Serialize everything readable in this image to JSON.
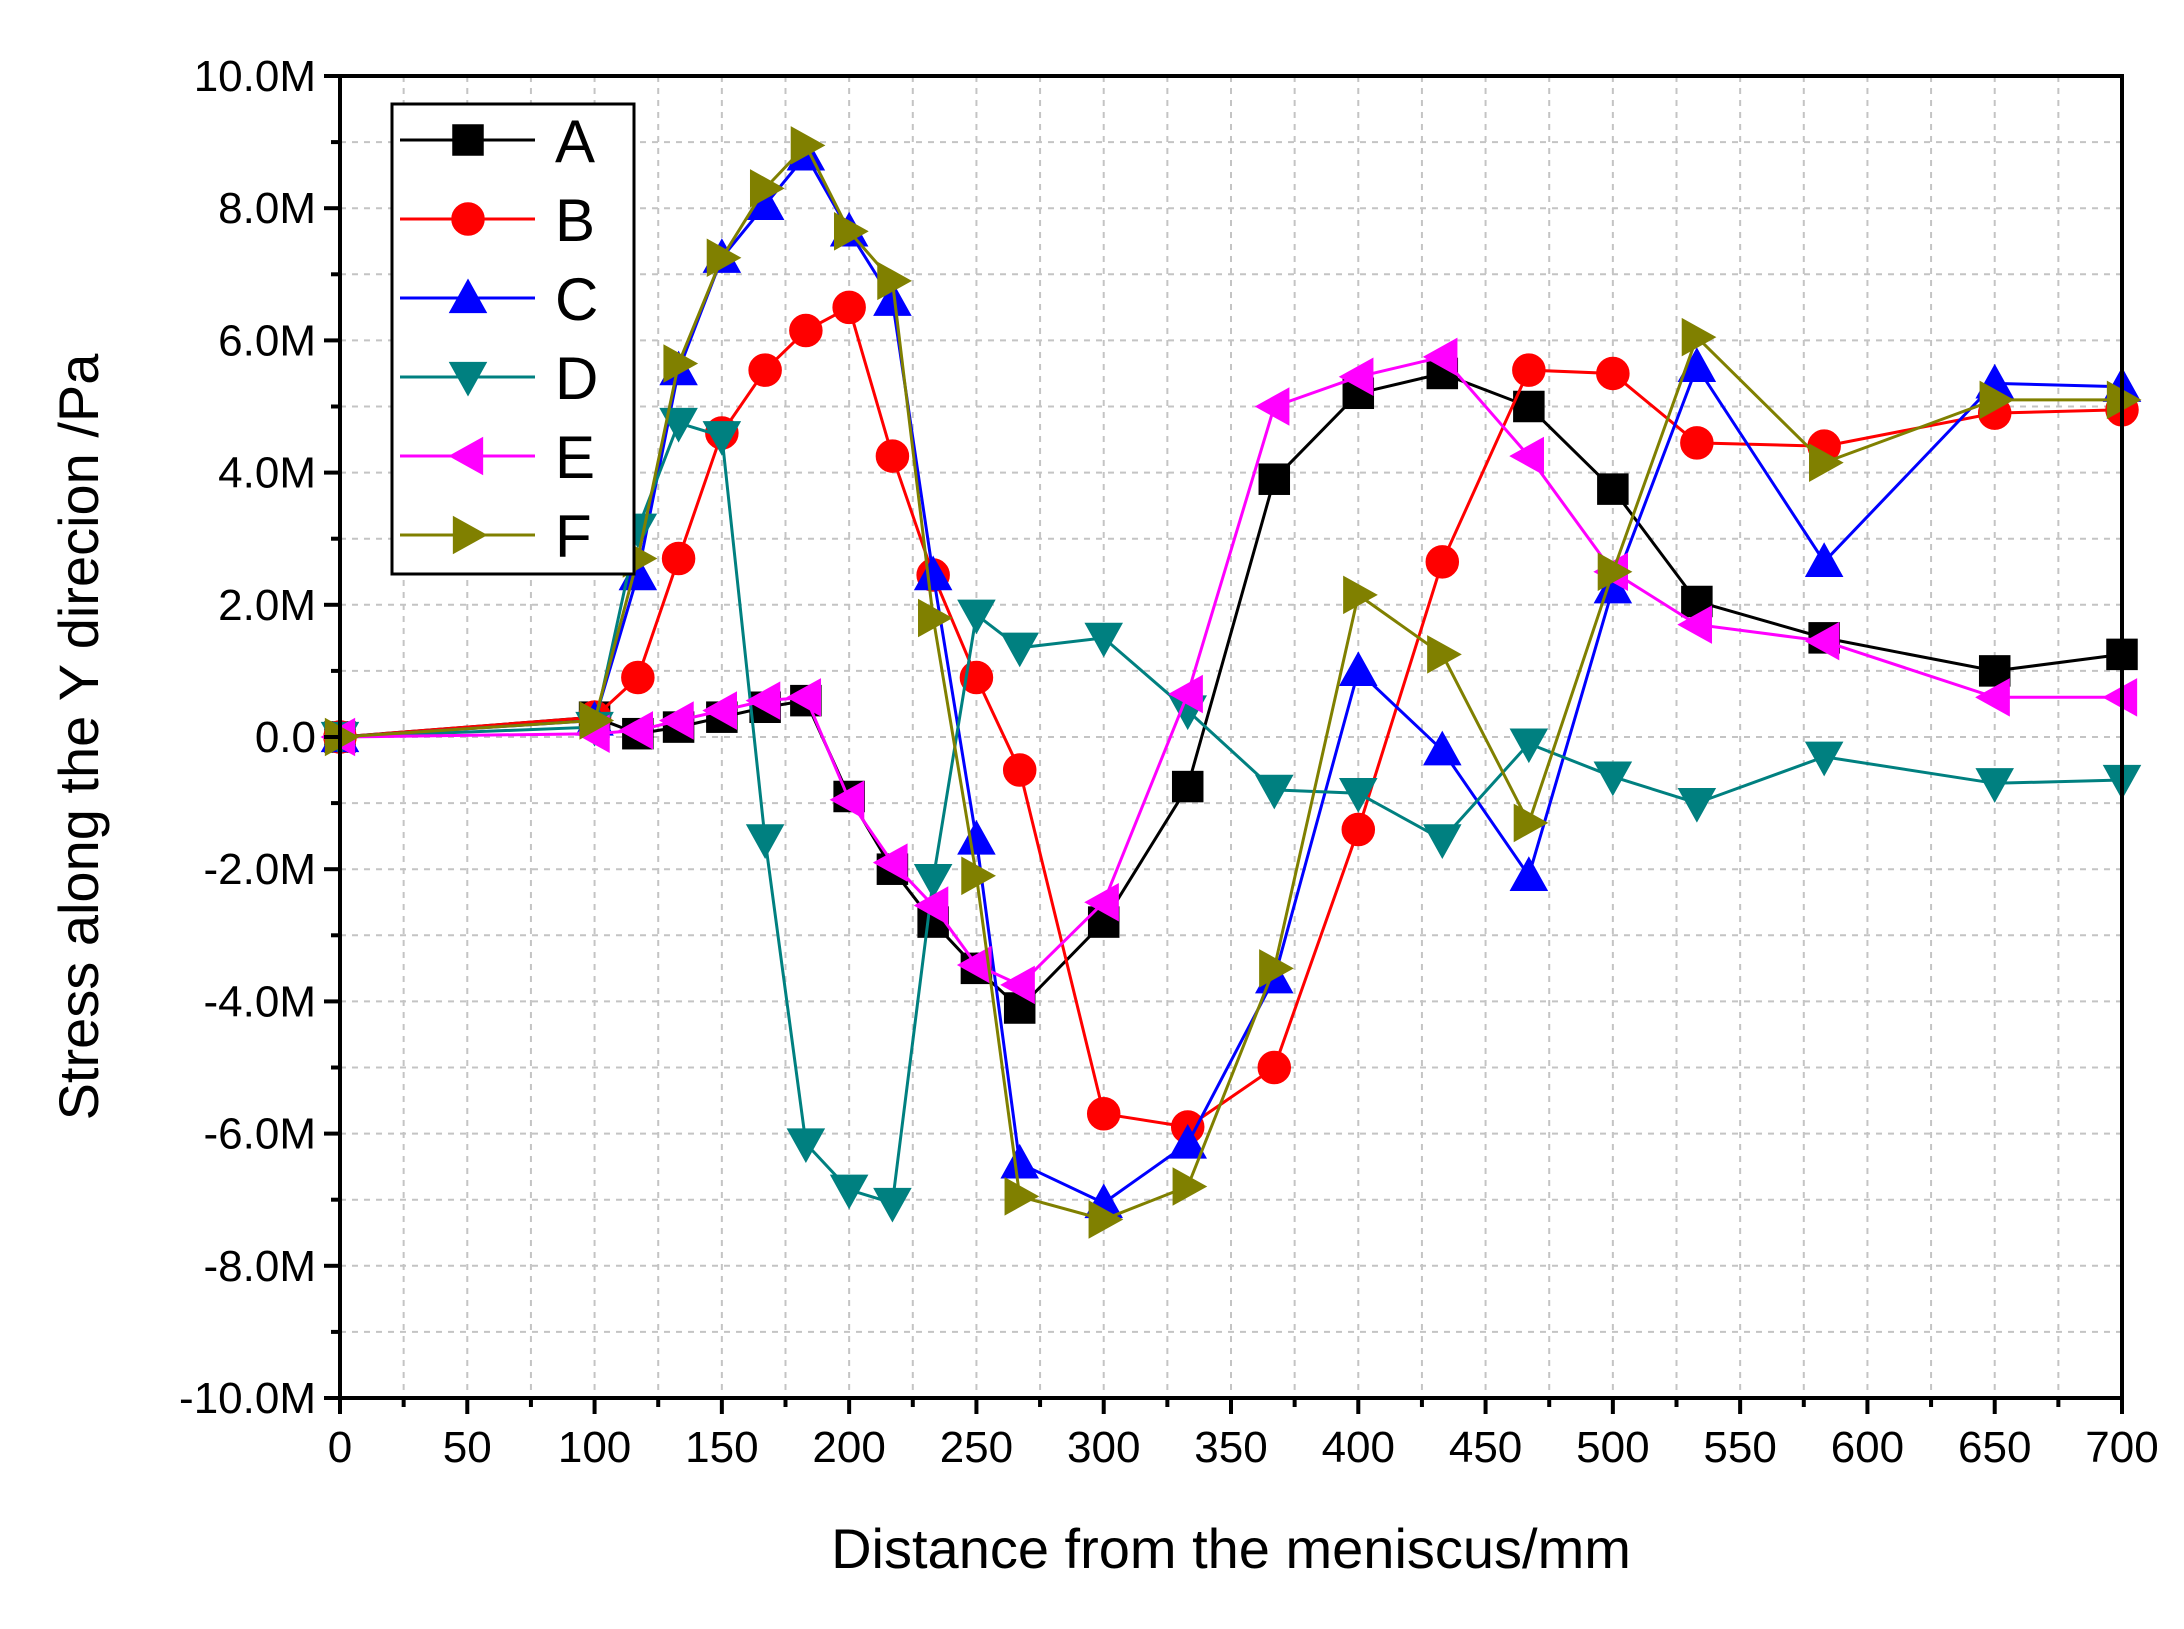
{
  "chart_data": {
    "type": "line",
    "title": "",
    "xlabel": "Distance from the meniscus/mm",
    "ylabel": "Stress along the Y direcion /Pa",
    "xlim": [
      0,
      700
    ],
    "ylim": [
      -10000000,
      10000000
    ],
    "x_ticks": [
      0,
      50,
      100,
      150,
      200,
      250,
      300,
      350,
      400,
      450,
      500,
      550,
      600,
      650,
      700
    ],
    "x_tick_labels": [
      "0",
      "50",
      "100",
      "150",
      "200",
      "250",
      "300",
      "350",
      "400",
      "450",
      "500",
      "550",
      "600",
      "650",
      "700"
    ],
    "y_ticks": [
      -10000000,
      -8000000,
      -6000000,
      -4000000,
      -2000000,
      0,
      2000000,
      4000000,
      6000000,
      8000000,
      10000000
    ],
    "y_tick_labels": [
      "-10.0M",
      "-8.0M",
      "-6.0M",
      "-4.0M",
      "-2.0M",
      "0.0",
      "2.0M",
      "4.0M",
      "6.0M",
      "8.0M",
      "10.0M"
    ],
    "grid": true,
    "legend_position": "top-left",
    "series": [
      {
        "name": "A",
        "color": "#000000",
        "marker": "square",
        "x": [
          0,
          100,
          117,
          133,
          150,
          167,
          183,
          200,
          217,
          233,
          250,
          267,
          300,
          333,
          367,
          400,
          433,
          467,
          500,
          533,
          583,
          650,
          700
        ],
        "y": [
          0,
          300000,
          50000,
          150000,
          300000,
          450000,
          550000,
          -900000,
          -2000000,
          -2800000,
          -3500000,
          -4100000,
          -2800000,
          -750000,
          3900000,
          5200000,
          5500000,
          5000000,
          3750000,
          2050000,
          1500000,
          1000000,
          1250000
        ]
      },
      {
        "name": "B",
        "color": "#ff0000",
        "marker": "circle",
        "x": [
          0,
          100,
          117,
          133,
          150,
          167,
          183,
          200,
          217,
          233,
          250,
          267,
          300,
          333,
          367,
          400,
          433,
          467,
          500,
          533,
          583,
          650,
          700
        ],
        "y": [
          0,
          300000,
          900000,
          2700000,
          4600000,
          5550000,
          6150000,
          6500000,
          4250000,
          2450000,
          900000,
          -500000,
          -5700000,
          -5900000,
          -5000000,
          -1400000,
          2650000,
          5550000,
          5500000,
          4450000,
          4400000,
          4900000,
          4950000
        ]
      },
      {
        "name": "C",
        "color": "#0000ff",
        "marker": "triangle-up",
        "x": [
          0,
          100,
          117,
          133,
          150,
          167,
          183,
          200,
          217,
          233,
          250,
          267,
          300,
          333,
          367,
          400,
          433,
          467,
          500,
          533,
          583,
          650,
          700
        ],
        "y": [
          0,
          250000,
          2450000,
          5550000,
          7250000,
          8050000,
          8800000,
          7650000,
          6600000,
          2450000,
          -1550000,
          -6450000,
          -7050000,
          -6150000,
          -3650000,
          1000000,
          -200000,
          -2100000,
          2250000,
          5600000,
          2650000,
          5350000,
          5300000
        ]
      },
      {
        "name": "D",
        "color": "#008080",
        "marker": "triangle-down",
        "x": [
          0,
          100,
          117,
          133,
          150,
          167,
          183,
          200,
          217,
          233,
          250,
          267,
          300,
          333,
          367,
          400,
          433,
          467,
          500,
          533,
          583,
          650,
          700
        ],
        "y": [
          0,
          150000,
          3150000,
          4750000,
          4550000,
          -1550000,
          -6150000,
          -6850000,
          -7050000,
          -2150000,
          1850000,
          1350000,
          1500000,
          400000,
          -800000,
          -850000,
          -1550000,
          -100000,
          -600000,
          -1000000,
          -300000,
          -700000,
          -650000
        ]
      },
      {
        "name": "E",
        "color": "#ff00ff",
        "marker": "triangle-left",
        "x": [
          0,
          100,
          117,
          133,
          150,
          167,
          183,
          200,
          217,
          233,
          250,
          267,
          300,
          333,
          367,
          400,
          433,
          467,
          500,
          533,
          583,
          650,
          700
        ],
        "y": [
          0,
          50000,
          100000,
          250000,
          400000,
          550000,
          600000,
          -950000,
          -1900000,
          -2550000,
          -3450000,
          -3750000,
          -2500000,
          650000,
          5000000,
          5450000,
          5750000,
          4250000,
          2500000,
          1700000,
          1450000,
          600000,
          600000
        ]
      },
      {
        "name": "F",
        "color": "#808000",
        "marker": "triangle-right",
        "x": [
          0,
          100,
          117,
          133,
          150,
          167,
          183,
          200,
          217,
          233,
          250,
          267,
          300,
          333,
          367,
          400,
          433,
          467,
          500,
          533,
          583,
          650,
          700
        ],
        "y": [
          0,
          250000,
          2700000,
          5650000,
          7250000,
          8300000,
          8950000,
          7650000,
          6900000,
          1800000,
          -2100000,
          -6950000,
          -7300000,
          -6800000,
          -3500000,
          2150000,
          1250000,
          -1300000,
          2500000,
          6050000,
          4150000,
          5100000,
          5100000
        ]
      }
    ]
  }
}
